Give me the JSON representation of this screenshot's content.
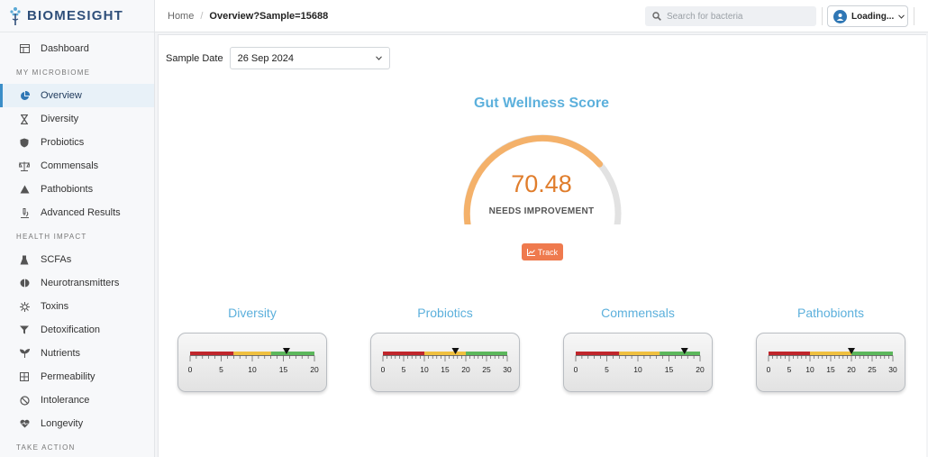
{
  "brand": {
    "name": "BIOMESIGHT"
  },
  "sidebar": {
    "dashboard": {
      "label": "Dashboard",
      "icon": "dashboard-icon"
    },
    "section_microbiome": "MY MICROBIOME",
    "microbiome_items": [
      {
        "label": "Overview",
        "icon": "pie-chart-icon",
        "active": true
      },
      {
        "label": "Diversity",
        "icon": "hourglass-icon"
      },
      {
        "label": "Probiotics",
        "icon": "shield-icon"
      },
      {
        "label": "Commensals",
        "icon": "scale-icon"
      },
      {
        "label": "Pathobionts",
        "icon": "warning-icon"
      },
      {
        "label": "Advanced Results",
        "icon": "microscope-icon"
      }
    ],
    "section_health": "HEALTH IMPACT",
    "health_items": [
      {
        "label": "SCFAs",
        "icon": "flask-icon"
      },
      {
        "label": "Neurotransmitters",
        "icon": "brain-icon"
      },
      {
        "label": "Toxins",
        "icon": "virus-icon"
      },
      {
        "label": "Detoxification",
        "icon": "filter-icon"
      },
      {
        "label": "Nutrients",
        "icon": "sprout-icon"
      },
      {
        "label": "Permeability",
        "icon": "grid-icon"
      },
      {
        "label": "Intolerance",
        "icon": "ban-icon"
      },
      {
        "label": "Longevity",
        "icon": "heart-pulse-icon"
      }
    ],
    "section_action": "TAKE ACTION"
  },
  "header": {
    "breadcrumb_home": "Home",
    "breadcrumb_separator": "/",
    "breadcrumb_current": "Overview?Sample=15688",
    "search_placeholder": "Search for bacteria",
    "user_label": "Loading..."
  },
  "main": {
    "sample_date_label": "Sample Date",
    "sample_date_value": "26 Sep 2024",
    "score_title": "Gut Wellness Score",
    "score_value": "70.48",
    "score_status": "NEEDS IMPROVEMENT",
    "score_fraction": 0.7048,
    "track_label": "Track",
    "colors": {
      "good": "#5cb85c",
      "mid": "#f0c040",
      "bad": "#c0262c",
      "gauge": "#f4b16a",
      "accent": "#5cb0dc"
    },
    "metrics": [
      {
        "title": "Diversity",
        "ticks": [
          "0",
          "5",
          "10",
          "15",
          "20"
        ],
        "max": 20,
        "value": 15.5,
        "red_to": 7,
        "yellow_to": 13
      },
      {
        "title": "Probiotics",
        "ticks": [
          "0",
          "5",
          "10",
          "15",
          "20",
          "25",
          "30"
        ],
        "max": 30,
        "value": 17.5,
        "red_to": 10,
        "yellow_to": 20
      },
      {
        "title": "Commensals",
        "ticks": [
          "0",
          "5",
          "10",
          "15",
          "20"
        ],
        "max": 20,
        "value": 17.5,
        "red_to": 7,
        "yellow_to": 13.5
      },
      {
        "title": "Pathobionts",
        "ticks": [
          "0",
          "5",
          "10",
          "15",
          "20",
          "25",
          "30"
        ],
        "max": 30,
        "value": 20,
        "red_to": 10,
        "yellow_to": 20
      }
    ]
  }
}
